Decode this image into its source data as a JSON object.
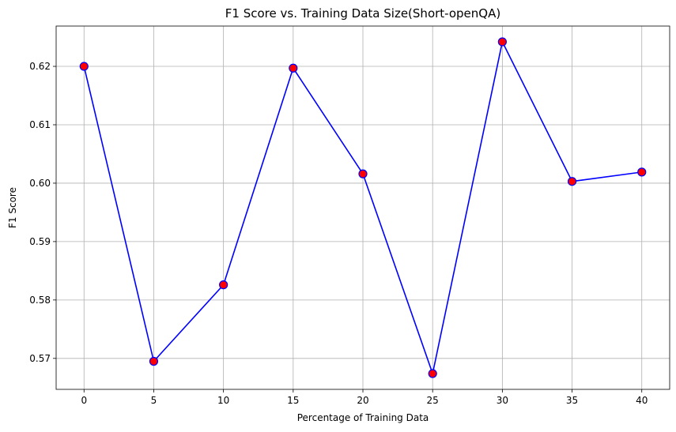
{
  "chart_data": {
    "type": "line",
    "title": "F1 Score vs. Training Data Size(Short-openQA)",
    "xlabel": "Percentage of Training Data",
    "ylabel": "F1 Score",
    "x": [
      0,
      5,
      10,
      15,
      20,
      25,
      30,
      35,
      40
    ],
    "series": [
      {
        "values": [
          0.62,
          0.5695,
          0.5826,
          0.6197,
          0.6016,
          0.5674,
          0.6242,
          0.6003,
          0.6019
        ],
        "line_color": "#0000ff",
        "marker_face_color": "#ff0000",
        "marker_edge_color": "#0000ff",
        "marker": "circle"
      }
    ],
    "xlim": [
      -2,
      42
    ],
    "ylim": [
      0.5647,
      0.6269
    ],
    "xticks": [
      "0",
      "5",
      "10",
      "15",
      "20",
      "25",
      "30",
      "35",
      "40"
    ],
    "yticks": [
      "0.57",
      "0.58",
      "0.59",
      "0.60",
      "0.61",
      "0.62"
    ],
    "ytick_values": [
      0.57,
      0.58,
      0.59,
      0.6,
      0.61,
      0.62
    ],
    "grid": true,
    "legend": "none"
  }
}
